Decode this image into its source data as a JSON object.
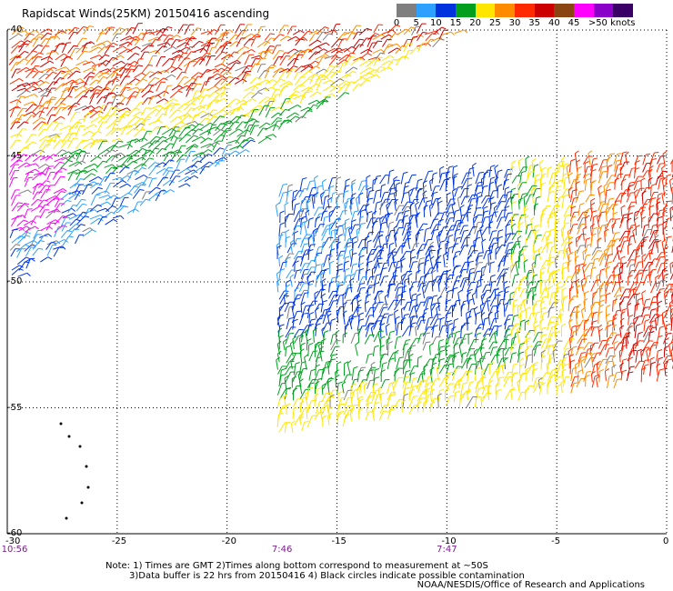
{
  "title": "Rapidscat Winds(25KM) 20150416 ascending",
  "colorbar": {
    "colors": [
      "#7f7f7f",
      "#2ea0ff",
      "#0033dd",
      "#009f1e",
      "#ffe600",
      "#ff8c00",
      "#ff2a00",
      "#cc0000",
      "#8b4513",
      "#ff00ff",
      "#8a00c8",
      "#3a0066"
    ],
    "labels": [
      "0",
      "5",
      "10",
      "15",
      "20",
      "25",
      "30",
      "35",
      "40",
      "45",
      ">50 knots"
    ]
  },
  "map": {
    "lon_min": -30,
    "lon_max": 0,
    "lat_top": -40,
    "lat_bottom": -60,
    "lon_ticks": [
      -30,
      -25,
      -20,
      -15,
      -10,
      -5,
      0
    ],
    "lat_ticks": [
      -40,
      -45,
      -50,
      -55,
      -60
    ],
    "lon_labels": [
      "-30",
      "-25",
      "-20",
      "-15",
      "-10",
      "-5",
      "0"
    ],
    "lat_labels": [
      "-40",
      "-45",
      "-50",
      "-55",
      "-60"
    ],
    "grid": "dotted"
  },
  "times": [
    {
      "label": "10:56",
      "lon": -30
    },
    {
      "label": "7:46",
      "lon": -17.5
    },
    {
      "label": "7:47",
      "lon": -10
    }
  ],
  "notes": {
    "line1": "Note: 1) Times are GMT 2)Times along bottom correspond to measurement at ~50S",
    "line2": "3)Data buffer is 22 hrs from 20150416 4) Black circles indicate possible contamination"
  },
  "credit": "NOAA/NESDIS/Office of Research and Applications"
}
